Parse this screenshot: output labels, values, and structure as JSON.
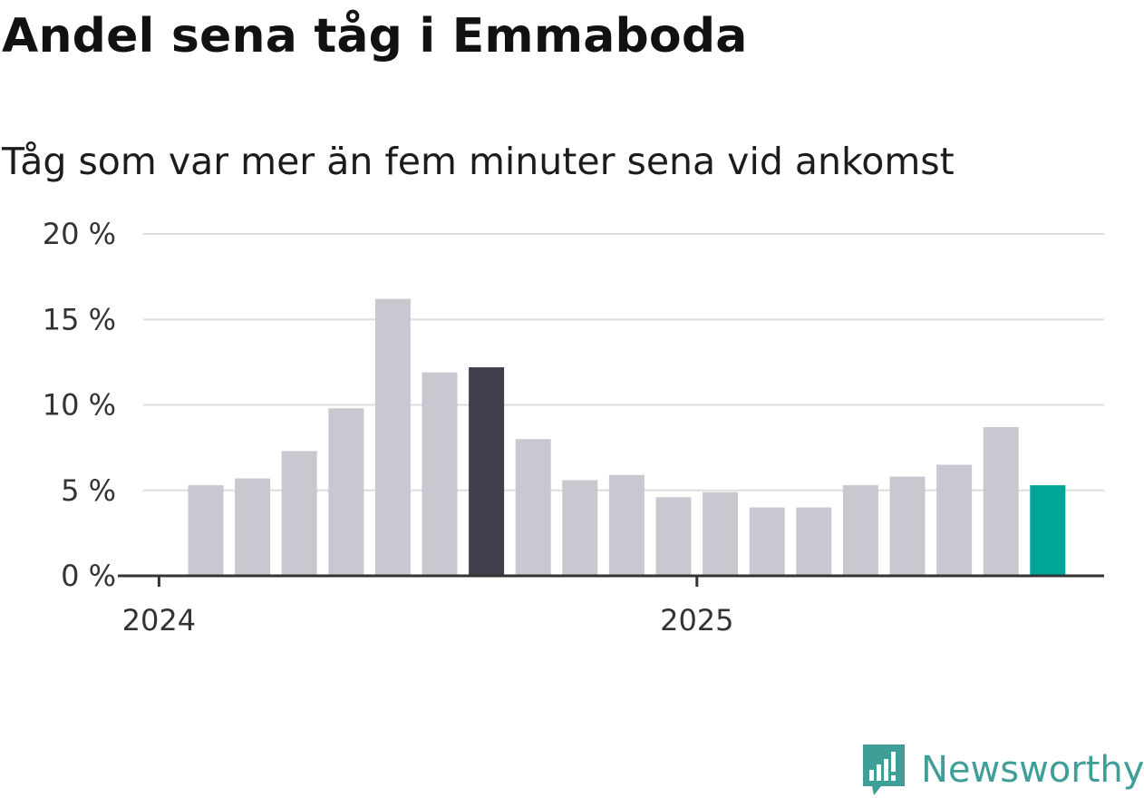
{
  "title": "Andel sena tåg i Emmaboda",
  "subtitle": "Tåg som var mer än fem minuter sena vid ankomst",
  "brand": {
    "name": "Newsworthy",
    "icon": "newsworthy-logo-icon",
    "color": "#3f9e97"
  },
  "colors": {
    "bar": "#c8c8d0",
    "highlight": "#403f4b",
    "latest": "#00a59a",
    "grid": "#dddddd",
    "axis": "#333333"
  },
  "chart_data": {
    "type": "bar",
    "title": "Andel sena tåg i Emmaboda",
    "subtitle": "Tåg som var mer än fem minuter sena vid ankomst",
    "xlabel": "",
    "ylabel": "",
    "ylim": [
      0,
      20
    ],
    "yticks": [
      0,
      5,
      10,
      15,
      20
    ],
    "ytick_labels": [
      "0 %",
      "5 %",
      "10 %",
      "15 %",
      "20 %"
    ],
    "x_tick_labels": [
      "2024",
      "2025"
    ],
    "categories": [
      "2024-02",
      "2024-03",
      "2024-04",
      "2024-05",
      "2024-06",
      "2024-07",
      "2024-08",
      "2024-09",
      "2024-10",
      "2024-11",
      "2024-12",
      "2025-01",
      "2025-02",
      "2025-03",
      "2025-04",
      "2025-05",
      "2025-06",
      "2025-07",
      "2025-08"
    ],
    "values": [
      5.3,
      5.7,
      7.3,
      9.8,
      16.2,
      11.9,
      12.2,
      8.0,
      5.6,
      5.9,
      4.6,
      4.9,
      4.0,
      4.0,
      5.3,
      5.8,
      6.5,
      8.7,
      5.3
    ],
    "highlight_index": 6,
    "latest_index": 18,
    "grid": true,
    "legend": "none"
  }
}
